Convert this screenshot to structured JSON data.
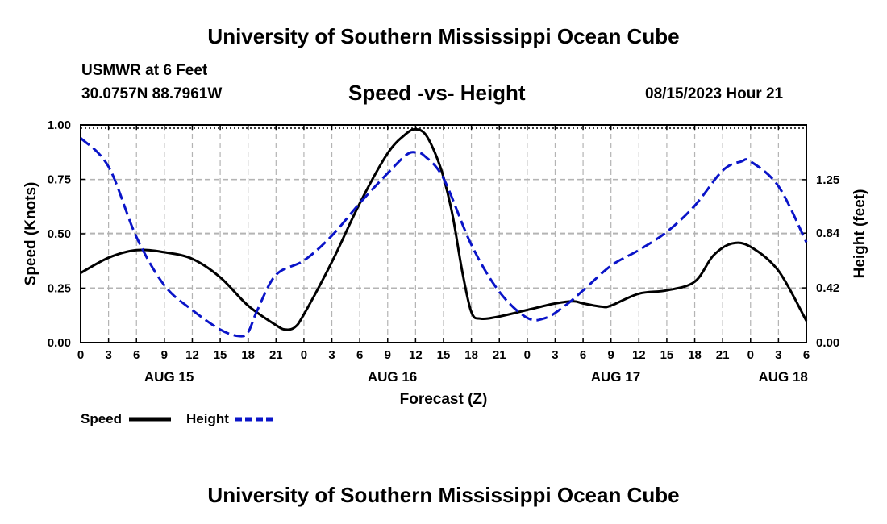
{
  "header": {
    "title": "University of Southern Mississippi Ocean Cube",
    "station": "USMWR at 6 Feet",
    "coordinates": "30.0757N  88.7961W",
    "datetime": "08/15/2023 Hour 21"
  },
  "footer": {
    "title": "University of Southern Mississippi Ocean Cube"
  },
  "legend": {
    "speed_label": "Speed",
    "height_label": "Height"
  },
  "colors": {
    "speed": "#000000",
    "height": "#0a14c8",
    "grid": "#b4b4b4"
  },
  "chart_data": {
    "type": "line",
    "title": "Speed -vs- Height",
    "xlabel": "Forecast (Z)",
    "ylabel": "Speed (Knots)",
    "y2label": "Height (feet)",
    "xlim": [
      0,
      78
    ],
    "ylim": [
      0,
      1
    ],
    "y2lim": [
      0,
      1.67
    ],
    "x_ticks": [
      {
        "x": 0,
        "label": "0"
      },
      {
        "x": 3,
        "label": "3"
      },
      {
        "x": 6,
        "label": "6"
      },
      {
        "x": 9,
        "label": "9"
      },
      {
        "x": 12,
        "label": "12"
      },
      {
        "x": 15,
        "label": "15"
      },
      {
        "x": 18,
        "label": "18"
      },
      {
        "x": 21,
        "label": "21"
      },
      {
        "x": 24,
        "label": "0"
      },
      {
        "x": 27,
        "label": "3"
      },
      {
        "x": 30,
        "label": "6"
      },
      {
        "x": 33,
        "label": "9"
      },
      {
        "x": 36,
        "label": "12"
      },
      {
        "x": 39,
        "label": "15"
      },
      {
        "x": 42,
        "label": "18"
      },
      {
        "x": 45,
        "label": "21"
      },
      {
        "x": 48,
        "label": "0"
      },
      {
        "x": 51,
        "label": "3"
      },
      {
        "x": 54,
        "label": "6"
      },
      {
        "x": 57,
        "label": "9"
      },
      {
        "x": 60,
        "label": "12"
      },
      {
        "x": 63,
        "label": "15"
      },
      {
        "x": 66,
        "label": "18"
      },
      {
        "x": 69,
        "label": "21"
      },
      {
        "x": 72,
        "label": "0"
      },
      {
        "x": 75,
        "label": "3"
      },
      {
        "x": 78,
        "label": "6"
      }
    ],
    "day_labels": [
      {
        "x": 9.5,
        "label": "AUG 15"
      },
      {
        "x": 33.5,
        "label": "AUG 16"
      },
      {
        "x": 57.5,
        "label": "AUG 17"
      },
      {
        "x": 75.5,
        "label": "AUG 18"
      }
    ],
    "y_ticks": [
      {
        "y": 0,
        "label": "0.00"
      },
      {
        "y": 0.25,
        "label": "0.25"
      },
      {
        "y": 0.5,
        "label": "0.50"
      },
      {
        "y": 0.75,
        "label": "0.75"
      },
      {
        "y": 1.0,
        "label": "1.00"
      }
    ],
    "y2_ticks": [
      {
        "y": 0,
        "label": "0.00"
      },
      {
        "y": 0.42,
        "label": "0.42"
      },
      {
        "y": 0.84,
        "label": "0.84"
      },
      {
        "y": 1.25,
        "label": "1.25"
      }
    ],
    "series": [
      {
        "name": "Speed",
        "axis": "left",
        "style": "solid",
        "points": [
          [
            0,
            0.32
          ],
          [
            3,
            0.39
          ],
          [
            6,
            0.425
          ],
          [
            9,
            0.415
          ],
          [
            12,
            0.385
          ],
          [
            15,
            0.3
          ],
          [
            18,
            0.17
          ],
          [
            21,
            0.08
          ],
          [
            22,
            0.06
          ],
          [
            23,
            0.07
          ],
          [
            24,
            0.13
          ],
          [
            27,
            0.37
          ],
          [
            30,
            0.64
          ],
          [
            33,
            0.87
          ],
          [
            35,
            0.96
          ],
          [
            36,
            0.98
          ],
          [
            37,
            0.96
          ],
          [
            38,
            0.88
          ],
          [
            39,
            0.76
          ],
          [
            40,
            0.58
          ],
          [
            41,
            0.33
          ],
          [
            42,
            0.14
          ],
          [
            43,
            0.11
          ],
          [
            45,
            0.12
          ],
          [
            48,
            0.15
          ],
          [
            51,
            0.18
          ],
          [
            53,
            0.19
          ],
          [
            54,
            0.18
          ],
          [
            56,
            0.165
          ],
          [
            57,
            0.17
          ],
          [
            60,
            0.225
          ],
          [
            63,
            0.24
          ],
          [
            66,
            0.28
          ],
          [
            68,
            0.4
          ],
          [
            70,
            0.455
          ],
          [
            72,
            0.44
          ],
          [
            75,
            0.33
          ],
          [
            78,
            0.1
          ]
        ]
      },
      {
        "name": "Height",
        "axis": "right",
        "style": "dashed",
        "points": [
          [
            0,
            1.57
          ],
          [
            3,
            1.35
          ],
          [
            6,
            0.81
          ],
          [
            9,
            0.44
          ],
          [
            12,
            0.25
          ],
          [
            15,
            0.1
          ],
          [
            17,
            0.05
          ],
          [
            18,
            0.08
          ],
          [
            19,
            0.25
          ],
          [
            21,
            0.52
          ],
          [
            24,
            0.63
          ],
          [
            27,
            0.82
          ],
          [
            30,
            1.07
          ],
          [
            33,
            1.3
          ],
          [
            35,
            1.44
          ],
          [
            36,
            1.46
          ],
          [
            37,
            1.43
          ],
          [
            39,
            1.26
          ],
          [
            42,
            0.75
          ],
          [
            45,
            0.39
          ],
          [
            48,
            0.19
          ],
          [
            50,
            0.19
          ],
          [
            52,
            0.28
          ],
          [
            54,
            0.4
          ],
          [
            57,
            0.59
          ],
          [
            60,
            0.71
          ],
          [
            63,
            0.85
          ],
          [
            66,
            1.05
          ],
          [
            69,
            1.32
          ],
          [
            71,
            1.39
          ],
          [
            72,
            1.39
          ],
          [
            75,
            1.2
          ],
          [
            78,
            0.77
          ]
        ]
      }
    ]
  }
}
